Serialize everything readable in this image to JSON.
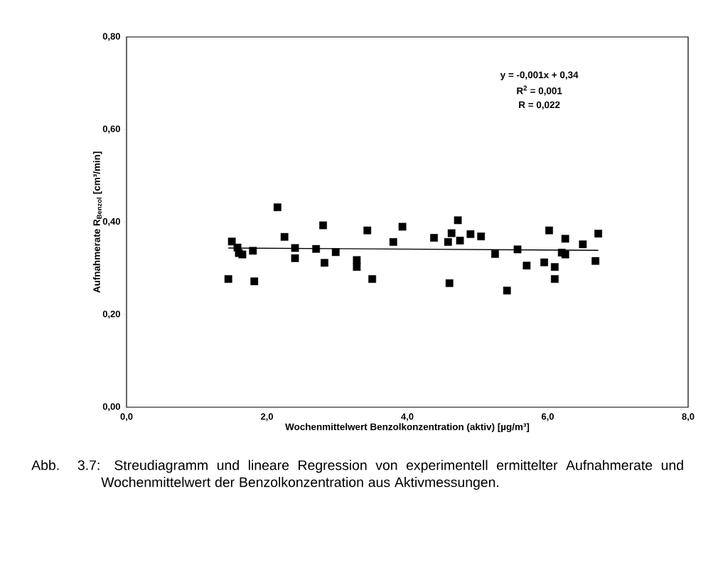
{
  "chart_data": {
    "type": "scatter",
    "xlabel": "Wochenmittelwert Benzolkonzentration (aktiv) [µg/m³]",
    "ylabel": "Aufnahmerate R$_{Benzol}$ [cm³/min]",
    "xlim": [
      0,
      8
    ],
    "ylim": [
      0,
      0.8
    ],
    "xticks": [
      {
        "value": 0,
        "label": "0,0"
      },
      {
        "value": 2,
        "label": "2,0"
      },
      {
        "value": 4,
        "label": "4,0"
      },
      {
        "value": 6,
        "label": "6,0"
      },
      {
        "value": 8,
        "label": "8,0"
      }
    ],
    "yticks": [
      {
        "value": 0,
        "label": "0,00"
      },
      {
        "value": 0.2,
        "label": "0,20"
      },
      {
        "value": 0.4,
        "label": "0,40"
      },
      {
        "value": 0.6,
        "label": "0,60"
      },
      {
        "value": 0.8,
        "label": "0,80"
      }
    ],
    "grid": false,
    "marker": "square",
    "series": [
      {
        "color": "#000000",
        "x": [
          1.45,
          1.5,
          1.58,
          1.6,
          1.65,
          1.8,
          1.82,
          2.15,
          2.25,
          2.4,
          2.4,
          2.7,
          2.8,
          2.82,
          2.98,
          3.28,
          3.28,
          3.43,
          3.5,
          3.8,
          3.93,
          4.38,
          4.58,
          4.6,
          4.63,
          4.72,
          4.75,
          4.9,
          5.05,
          5.25,
          5.42,
          5.57,
          5.7,
          5.95,
          6.02,
          6.1,
          6.1,
          6.2,
          6.25,
          6.25,
          6.5,
          6.68,
          6.72
        ],
        "values": [
          0.277,
          0.358,
          0.345,
          0.333,
          0.33,
          0.338,
          0.272,
          0.432,
          0.368,
          0.344,
          0.322,
          0.342,
          0.393,
          0.312,
          0.335,
          0.318,
          0.303,
          0.382,
          0.277,
          0.357,
          0.39,
          0.366,
          0.357,
          0.268,
          0.376,
          0.404,
          0.36,
          0.374,
          0.369,
          0.331,
          0.252,
          0.341,
          0.306,
          0.313,
          0.382,
          0.303,
          0.277,
          0.334,
          0.364,
          0.33,
          0.352,
          0.316,
          0.375
        ]
      },
      {
        "type": "line",
        "color": "#000000",
        "line_style": "solid",
        "marker": "none",
        "x": [
          1.45,
          6.72
        ],
        "values": [
          0.344,
          0.339
        ]
      }
    ],
    "annotations": [
      "y = -0,001x + 0,34",
      "R$^{2}$ = 0,001",
      "R = 0,022",
      "Abb. 3.7:\tStreudiagramm und lineare Regression von experimentell ermittelter Aufnahmerate und Wochenmittelwert der Benzolkonzentration aus Aktivmessungen."
    ]
  }
}
